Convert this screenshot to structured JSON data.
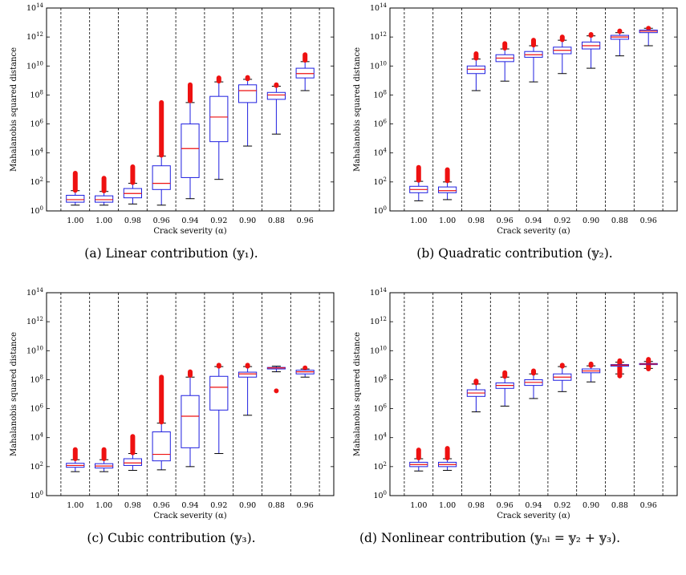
{
  "chart_data": [
    {
      "type": "box",
      "caption": "(a) Linear contribution (𝕪₁).",
      "xlabel": "Crack severity (α)",
      "ylabel": "Mahalanobis squared distance",
      "yscale": "log",
      "ylim": [
        1,
        100000000000000.0
      ],
      "yticks": [
        "10^0",
        "10^2",
        "10^4",
        "10^6",
        "10^8",
        "10^10",
        "10^12",
        "10^14"
      ],
      "categories": [
        "1.00",
        "1.00",
        "0.98",
        "0.96",
        "0.94",
        "0.92",
        "0.90",
        "0.88",
        "0.96"
      ],
      "boxes": [
        {
          "wl": 2.5,
          "q1": 4,
          "med": 6,
          "q3": 12,
          "wh": 25,
          "out_lo": 26,
          "out_hi": 400
        },
        {
          "wl": 2.5,
          "q1": 4,
          "med": 6,
          "q3": 11,
          "wh": 22,
          "out_lo": 24,
          "out_hi": 180
        },
        {
          "wl": 3,
          "q1": 8,
          "med": 16,
          "q3": 35,
          "wh": 80,
          "out_lo": 90,
          "out_hi": 1100
        },
        {
          "wl": 2.5,
          "q1": 30,
          "med": 80,
          "q3": 1300,
          "wh": 6000,
          "out_lo": 7000,
          "out_hi": 30000000
        },
        {
          "wl": 7,
          "q1": 200,
          "med": 20000,
          "q3": 1000000,
          "wh": 30000000,
          "out_lo": 40000000,
          "out_hi": 500000000
        },
        {
          "wl": 150,
          "q1": 60000,
          "med": 3000000,
          "q3": 80000000,
          "wh": 800000000,
          "out_lo": 900000000,
          "out_hi": 1500000000
        },
        {
          "wl": 30000,
          "q1": 30000000,
          "med": 200000000,
          "q3": 500000000,
          "wh": 1200000000,
          "out_lo": 1300000000,
          "out_hi": 1600000000
        },
        {
          "wl": 200000,
          "q1": 50000000,
          "med": 100000000,
          "q3": 150000000,
          "wh": 400000000,
          "out_lo": 450000000,
          "out_hi": 500000000
        },
        {
          "wl": 200000000,
          "q1": 1500000000,
          "med": 3000000000,
          "q3": 7000000000,
          "wh": 20000000000,
          "out_lo": 25000000000,
          "out_hi": 60000000000
        }
      ]
    },
    {
      "type": "box",
      "caption": "(b) Quadratic contribution (𝕪₂).",
      "xlabel": "Crack severity (α)",
      "ylabel": "Mahalanobis squared distance",
      "yscale": "log",
      "ylim": [
        1,
        100000000000000.0
      ],
      "yticks": [
        "10^0",
        "10^2",
        "10^4",
        "10^6",
        "10^8",
        "10^10",
        "10^12",
        "10^14"
      ],
      "categories": [
        "1.00",
        "1.00",
        "0.98",
        "0.96",
        "0.94",
        "0.92",
        "0.90",
        "0.88",
        "0.96"
      ],
      "boxes": [
        {
          "wl": 5,
          "q1": 18,
          "med": 30,
          "q3": 50,
          "wh": 110,
          "out_lo": 130,
          "out_hi": 1000
        },
        {
          "wl": 6,
          "q1": 18,
          "med": 25,
          "q3": 45,
          "wh": 100,
          "out_lo": 120,
          "out_hi": 700
        },
        {
          "wl": 200000000,
          "q1": 3000000000,
          "med": 6000000000,
          "q3": 10000000000,
          "wh": 30000000000,
          "out_lo": 35000000000,
          "out_hi": 70000000000
        },
        {
          "wl": 900000000,
          "q1": 20000000000,
          "med": 35000000000,
          "q3": 60000000000,
          "wh": 150000000000,
          "out_lo": 170000000000,
          "out_hi": 350000000000
        },
        {
          "wl": 800000000,
          "q1": 40000000000,
          "med": 60000000000,
          "q3": 100000000000,
          "wh": 250000000000,
          "out_lo": 280000000000,
          "out_hi": 600000000000
        },
        {
          "wl": 3000000000,
          "q1": 70000000000,
          "med": 120000000000,
          "q3": 200000000000,
          "wh": 600000000000,
          "out_lo": 650000000000,
          "out_hi": 1000000000000
        },
        {
          "wl": 7000000000,
          "q1": 150000000000,
          "med": 250000000000,
          "q3": 450000000000,
          "wh": 1200000000000,
          "out_lo": 1300000000000,
          "out_hi": 1500000000000
        },
        {
          "wl": 50000000000,
          "q1": 700000000000,
          "med": 1000000000000,
          "q3": 1300000000000,
          "wh": 2000000000000,
          "out_lo": 2400000000000,
          "out_hi": 2600000000000
        },
        {
          "wl": 250000000000,
          "q1": 2000000000000,
          "med": 2500000000000,
          "q3": 3000000000000,
          "wh": 4000000000000,
          "out_lo": 4000000000000,
          "out_hi": 4000000000000
        }
      ]
    },
    {
      "type": "box",
      "caption": "(c) Cubic contribution (𝕪₃).",
      "xlabel": "Crack severity (α)",
      "ylabel": "Mahalanobis squared distance",
      "yscale": "log",
      "ylim": [
        1,
        100000000000000.0
      ],
      "yticks": [
        "10^0",
        "10^2",
        "10^4",
        "10^6",
        "10^8",
        "10^10",
        "10^12",
        "10^14"
      ],
      "categories": [
        "1.00",
        "1.00",
        "0.98",
        "0.96",
        "0.94",
        "0.92",
        "0.90",
        "0.88",
        "0.96"
      ],
      "boxes": [
        {
          "wl": 45,
          "q1": 90,
          "med": 120,
          "q3": 170,
          "wh": 300,
          "out_lo": 350,
          "out_hi": 1500
        },
        {
          "wl": 45,
          "q1": 80,
          "med": 110,
          "q3": 160,
          "wh": 300,
          "out_lo": 350,
          "out_hi": 1500
        },
        {
          "wl": 55,
          "q1": 120,
          "med": 180,
          "q3": 350,
          "wh": 800,
          "out_lo": 900,
          "out_hi": 12000
        },
        {
          "wl": 60,
          "q1": 250,
          "med": 700,
          "q3": 25000,
          "wh": 100000,
          "out_lo": 120000,
          "out_hi": 150000000
        },
        {
          "wl": 100,
          "q1": 2000,
          "med": 300000,
          "q3": 8000000,
          "wh": 150000000,
          "out_lo": 200000000,
          "out_hi": 350000000
        },
        {
          "wl": 800,
          "q1": 800000,
          "med": 30000000,
          "q3": 170000000,
          "wh": 800000000,
          "out_lo": 850000000,
          "out_hi": 1000000000
        },
        {
          "wl": 350000,
          "q1": 150000000,
          "med": 250000000,
          "q3": 330000000,
          "wh": 800000000,
          "out_lo": 850000000,
          "out_hi": 1000000000
        },
        {
          "wl": 350000000,
          "q1": 550000000,
          "med": 650000000,
          "q3": 700000000,
          "wh": 850000000,
          "out_lo": 17000000,
          "out_hi": 17000000
        },
        {
          "wl": 150000000,
          "q1": 250000000,
          "med": 350000000,
          "q3": 450000000,
          "wh": 550000000,
          "out_lo": 650000000,
          "out_hi": 650000000
        }
      ]
    },
    {
      "type": "box",
      "caption": "(d) Nonlinear contribution (𝕪ₙₗ = 𝕪₂ + 𝕪₃).",
      "xlabel": "Crack severity (α)",
      "ylabel": "Mahalanobis squared distance",
      "yscale": "log",
      "ylim": [
        1,
        100000000000000.0
      ],
      "yticks": [
        "10^0",
        "10^2",
        "10^4",
        "10^6",
        "10^8",
        "10^10",
        "10^12",
        "10^14"
      ],
      "categories": [
        "1.00",
        "1.00",
        "0.98",
        "0.96",
        "0.94",
        "0.92",
        "0.90",
        "0.88",
        "0.96"
      ],
      "boxes": [
        {
          "wl": 50,
          "q1": 100,
          "med": 140,
          "q3": 200,
          "wh": 350,
          "out_lo": 400,
          "out_hi": 1400
        },
        {
          "wl": 55,
          "q1": 100,
          "med": 140,
          "q3": 200,
          "wh": 350,
          "out_lo": 400,
          "out_hi": 1800
        },
        {
          "wl": 600000,
          "q1": 7000000,
          "med": 12000000,
          "q3": 20000000,
          "wh": 50000000,
          "out_lo": 60000000,
          "out_hi": 80000000
        },
        {
          "wl": 1500000,
          "q1": 25000000,
          "med": 40000000,
          "q3": 60000000,
          "wh": 150000000,
          "out_lo": 170000000,
          "out_hi": 300000000
        },
        {
          "wl": 5000000,
          "q1": 40000000,
          "med": 65000000,
          "q3": 100000000,
          "wh": 250000000,
          "out_lo": 280000000,
          "out_hi": 400000000
        },
        {
          "wl": 15000000,
          "q1": 90000000,
          "med": 150000000,
          "q3": 250000000,
          "wh": 800000000,
          "out_lo": 850000000,
          "out_hi": 1000000000
        },
        {
          "wl": 70000000,
          "q1": 300000000,
          "med": 400000000,
          "q3": 550000000,
          "wh": 900000000,
          "out_lo": 950000000,
          "out_hi": 1200000000
        },
        {
          "wl": 250000000,
          "q1": 850000000,
          "med": 1000000000,
          "q3": 1100000000,
          "wh": 1600000000,
          "out_lo": 180000000,
          "out_hi": 2000000000
        },
        {
          "wl": 600000000,
          "q1": 1100000000,
          "med": 1200000000,
          "q3": 1300000000,
          "wh": 1800000000,
          "out_lo": 550000000,
          "out_hi": 2500000000
        }
      ]
    }
  ]
}
